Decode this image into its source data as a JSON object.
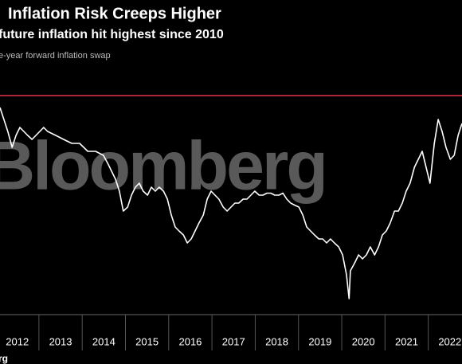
{
  "chart_data": {
    "type": "line",
    "title": "Inflation Risk Creeps Higher",
    "subtitle": "future inflation hit highest since 2010",
    "watermark": "Bloomberg",
    "source": "rg",
    "xlim": [
      2012.1,
      2022.78
    ],
    "ylim": [
      0.5,
      2.9
    ],
    "xticks": [
      {
        "value": 2012.5,
        "label": "2012"
      },
      {
        "value": 2013.5,
        "label": "2013"
      },
      {
        "value": 2014.5,
        "label": "2014"
      },
      {
        "value": 2015.5,
        "label": "2015"
      },
      {
        "value": 2016.5,
        "label": "2016"
      },
      {
        "value": 2017.5,
        "label": "2017"
      },
      {
        "value": 2018.5,
        "label": "2018"
      },
      {
        "value": 2019.5,
        "label": "2019"
      },
      {
        "value": 2020.5,
        "label": "2020"
      },
      {
        "value": 2021.5,
        "label": "2021"
      },
      {
        "value": 2022.5,
        "label": "2022"
      }
    ],
    "reference_line": {
      "value": 2.74,
      "color": "#e8333f"
    },
    "series": [
      {
        "name": "e-year forward inflation swap",
        "color": "#ffffff",
        "x": [
          2012.1,
          2012.19,
          2012.28,
          2012.38,
          2012.47,
          2012.56,
          2012.65,
          2012.74,
          2012.84,
          2012.93,
          2013.02,
          2013.11,
          2013.2,
          2013.39,
          2013.57,
          2013.76,
          2013.94,
          2014.13,
          2014.31,
          2014.49,
          2014.59,
          2014.68,
          2014.77,
          2014.86,
          2014.95,
          2015.05,
          2015.14,
          2015.23,
          2015.32,
          2015.41,
          2015.51,
          2015.6,
          2015.69,
          2015.78,
          2015.88,
          2015.97,
          2016.06,
          2016.15,
          2016.24,
          2016.34,
          2016.43,
          2016.52,
          2016.61,
          2016.7,
          2016.8,
          2016.89,
          2016.98,
          2017.07,
          2017.16,
          2017.26,
          2017.35,
          2017.44,
          2017.53,
          2017.62,
          2017.72,
          2017.81,
          2017.9,
          2017.99,
          2018.09,
          2018.18,
          2018.27,
          2018.36,
          2018.45,
          2018.55,
          2018.64,
          2018.73,
          2018.82,
          2018.91,
          2019.01,
          2019.1,
          2019.19,
          2019.28,
          2019.37,
          2019.47,
          2019.56,
          2019.65,
          2019.74,
          2019.83,
          2019.93,
          2020.02,
          2020.11,
          2020.17,
          2020.2,
          2020.3,
          2020.39,
          2020.48,
          2020.57,
          2020.66,
          2020.76,
          2020.85,
          2020.94,
          2021.03,
          2021.12,
          2021.22,
          2021.31,
          2021.4,
          2021.49,
          2021.58,
          2021.68,
          2021.77,
          2021.86,
          2021.95,
          2022.04,
          2022.14,
          2022.23,
          2022.32,
          2022.41,
          2022.51,
          2022.6,
          2022.69,
          2022.78
        ],
        "values": [
          2.62,
          2.5,
          2.38,
          2.22,
          2.34,
          2.42,
          2.38,
          2.34,
          2.3,
          2.34,
          2.38,
          2.42,
          2.38,
          2.34,
          2.3,
          2.26,
          2.26,
          2.18,
          2.18,
          2.14,
          2.06,
          1.98,
          1.9,
          1.78,
          1.58,
          1.62,
          1.74,
          1.82,
          1.86,
          1.78,
          1.74,
          1.82,
          1.78,
          1.82,
          1.78,
          1.7,
          1.54,
          1.42,
          1.38,
          1.34,
          1.26,
          1.3,
          1.38,
          1.46,
          1.54,
          1.7,
          1.78,
          1.74,
          1.7,
          1.62,
          1.58,
          1.62,
          1.66,
          1.66,
          1.7,
          1.7,
          1.74,
          1.78,
          1.74,
          1.74,
          1.76,
          1.76,
          1.74,
          1.74,
          1.76,
          1.7,
          1.66,
          1.64,
          1.62,
          1.54,
          1.42,
          1.38,
          1.34,
          1.3,
          1.3,
          1.26,
          1.3,
          1.26,
          1.22,
          1.14,
          0.94,
          0.7,
          0.98,
          1.06,
          1.14,
          1.1,
          1.14,
          1.22,
          1.14,
          1.22,
          1.34,
          1.38,
          1.46,
          1.58,
          1.58,
          1.66,
          1.78,
          1.86,
          2.02,
          2.1,
          2.18,
          2.02,
          1.86,
          2.26,
          2.5,
          2.38,
          2.22,
          2.1,
          2.14,
          2.34,
          2.46
        ]
      }
    ]
  }
}
